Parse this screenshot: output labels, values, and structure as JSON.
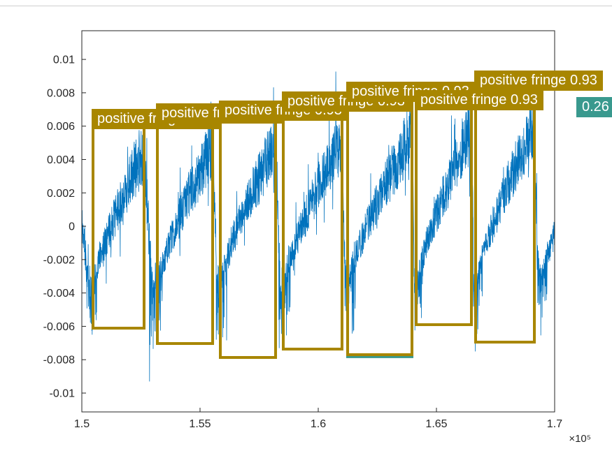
{
  "figure": {
    "background": "#ffffff",
    "axes_color": "#262626",
    "plot_bg": "#ffffff"
  },
  "chart_data": {
    "type": "line",
    "title": "",
    "xlabel": "",
    "ylabel": "",
    "grid": false,
    "legend": null,
    "x_multiplier_label": "×10⁵",
    "xlim": [
      150000,
      170000
    ],
    "ylim": [
      -0.01113,
      0.01172
    ],
    "x_ticks": [
      150000,
      155000,
      160000,
      165000,
      170000
    ],
    "x_tick_labels": [
      "1.5",
      "1.55",
      "1.6",
      "1.65",
      "1.7"
    ],
    "y_ticks": [
      -0.01,
      -0.008,
      -0.006,
      -0.004,
      -0.002,
      0,
      0.002,
      0.004,
      0.006,
      0.008,
      0.01
    ],
    "y_tick_labels": [
      "-0.01",
      "-0.008",
      "-0.006",
      "-0.004",
      "-0.002",
      "0",
      "0.002",
      "0.004",
      "0.006",
      "0.008",
      "0.01"
    ],
    "signal": {
      "name": "interferogram-fringes",
      "color": "#0072BD",
      "seed": 11,
      "samples": 2600,
      "floor": -0.0035,
      "lead_in": {
        "start_level": 0.0003,
        "floor": -0.0047
      },
      "tail": {
        "x1": 169400,
        "x2": 171900,
        "peak": 0.0062,
        "bottom": -0.0069
      }
    },
    "detections": [
      {
        "class": "positive fringe",
        "confidence": "0.26",
        "label_text": "positive fringe 0.26",
        "color": "#39998E",
        "text_color": "#ffffff",
        "fringe": false,
        "strip_only": false,
        "box": {
          "x1": 161243,
          "x2": 163965,
          "y_top": 0.008577,
          "y_bottom": -0.00782
        }
      },
      {
        "class": "positive fringe",
        "confidence": "0.93",
        "label_text": "positive fringe 0.93",
        "color": "#A88600",
        "text_color": "#ffffff",
        "fringe": true,
        "strip_only": false,
        "signal_peak": 0.0046,
        "box": {
          "x1": 150473,
          "x2": 152633,
          "y_top": 0.006946,
          "y_bottom": -0.006109
        }
      },
      {
        "class": "positive fringe",
        "confidence": "0.93",
        "label_text": "positive fringe 0.93",
        "color": "#A88600",
        "text_color": "#ffffff",
        "fringe": true,
        "strip_only": false,
        "signal_peak": 0.0048,
        "box": {
          "x1": 153195,
          "x2": 155533,
          "y_top": 0.00728,
          "y_bottom": -0.00703
        }
      },
      {
        "class": "positive fringe",
        "confidence": "0.93",
        "label_text": "positive fringe 0.93",
        "color": "#A88600",
        "text_color": "#ffffff",
        "fringe": true,
        "strip_only": false,
        "signal_peak": 0.005,
        "box": {
          "x1": 155858,
          "x2": 158196,
          "y_top": 0.007448,
          "y_bottom": -0.007866
        }
      },
      {
        "class": "positive fringe",
        "confidence": "0.93",
        "label_text": "positive fringe 0.93",
        "color": "#A88600",
        "text_color": "#ffffff",
        "fringe": true,
        "strip_only": false,
        "signal_peak": 0.0053,
        "box": {
          "x1": 158521,
          "x2": 161006,
          "y_top": 0.007992,
          "y_bottom": -0.007364
        }
      },
      {
        "class": "positive fringe",
        "confidence": "0.93",
        "label_text": "positive fringe 0.93",
        "color": "#A88600",
        "text_color": "#ffffff",
        "fringe": true,
        "strip_only": false,
        "signal_peak": 0.0056,
        "box": {
          "x1": 161243,
          "x2": 163965,
          "y_top": 0.008577,
          "y_bottom": -0.007699
        }
      },
      {
        "class": "positive fringe",
        "confidence": "0.93",
        "label_text": "positive fringe 0.93",
        "color": "#A88600",
        "text_color": "#ffffff",
        "fringe": true,
        "strip_only": false,
        "signal_peak": 0.0058,
        "box": {
          "x1": 164142,
          "x2": 166479,
          "y_top": 0.008075,
          "y_bottom": -0.0059
        }
      },
      {
        "class": "positive fringe",
        "confidence": "0.93",
        "label_text": "positive fringe 0.93",
        "color": "#A88600",
        "text_color": "#ffffff",
        "fringe": true,
        "strip_only": false,
        "signal_peak": 0.0061,
        "box": {
          "x1": 166657,
          "x2": 169142,
          "y_top": 0.009247,
          "y_bottom": -0.006946
        }
      },
      {
        "class": "",
        "confidence": "0.26",
        "label_text": "0.26",
        "color": "#39998E",
        "text_color": "#ffffff",
        "fringe": false,
        "strip_only": true,
        "box": {
          "x1": 170976,
          "x2": 172500,
          "y_top": 0.007657,
          "y_bottom": -0.0069
        }
      }
    ]
  }
}
